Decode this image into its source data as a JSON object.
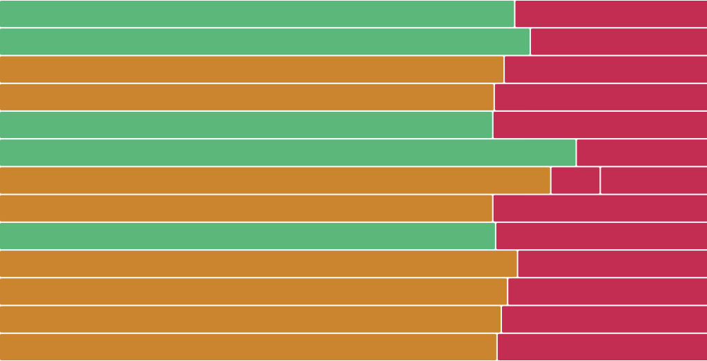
{
  "colors": {
    "green": "#5cb87a",
    "orange": "#cc852f",
    "red": "#c42d52",
    "background": "#ffffff"
  },
  "chart_data": {
    "type": "bar",
    "orientation": "horizontal",
    "stacked": true,
    "normalized": true,
    "axes_visible": false,
    "grid": false,
    "legend": "none",
    "xlim": [
      0,
      100
    ],
    "rows": [
      {
        "segments": [
          {
            "color": "green",
            "value": 72.9
          },
          {
            "color": "red",
            "value": 27.1
          }
        ]
      },
      {
        "segments": [
          {
            "color": "green",
            "value": 75.1
          },
          {
            "color": "red",
            "value": 24.9
          }
        ]
      },
      {
        "segments": [
          {
            "color": "orange",
            "value": 71.4
          },
          {
            "color": "red",
            "value": 28.6
          }
        ]
      },
      {
        "segments": [
          {
            "color": "orange",
            "value": 70.0
          },
          {
            "color": "red",
            "value": 30.0
          }
        ]
      },
      {
        "segments": [
          {
            "color": "green",
            "value": 69.8
          },
          {
            "color": "red",
            "value": 30.2
          }
        ]
      },
      {
        "segments": [
          {
            "color": "green",
            "value": 81.6
          },
          {
            "color": "red",
            "value": 18.4
          }
        ]
      },
      {
        "segments": [
          {
            "color": "orange",
            "value": 78.0
          },
          {
            "color": "red",
            "value": 7.0
          },
          {
            "color": "red",
            "value": 15.0
          }
        ]
      },
      {
        "segments": [
          {
            "color": "orange",
            "value": 69.8
          },
          {
            "color": "red",
            "value": 30.2
          }
        ]
      },
      {
        "segments": [
          {
            "color": "green",
            "value": 70.2
          },
          {
            "color": "red",
            "value": 29.8
          }
        ]
      },
      {
        "segments": [
          {
            "color": "orange",
            "value": 73.3
          },
          {
            "color": "red",
            "value": 26.7
          }
        ]
      },
      {
        "segments": [
          {
            "color": "orange",
            "value": 71.9
          },
          {
            "color": "red",
            "value": 28.1
          }
        ]
      },
      {
        "segments": [
          {
            "color": "orange",
            "value": 71.0
          },
          {
            "color": "red",
            "value": 29.0
          }
        ]
      },
      {
        "segments": [
          {
            "color": "orange",
            "value": 70.4
          },
          {
            "color": "red",
            "value": 29.6
          }
        ]
      }
    ]
  }
}
